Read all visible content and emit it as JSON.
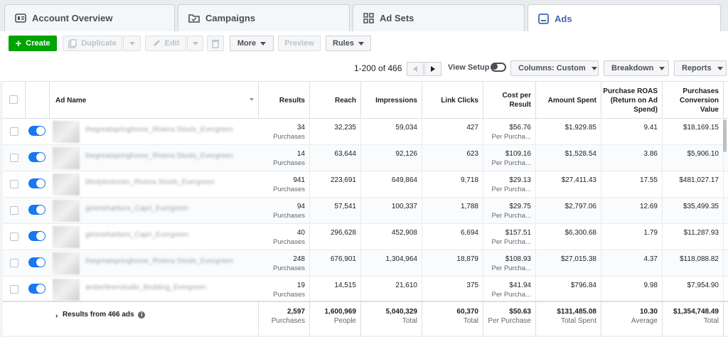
{
  "tabs": [
    {
      "label": "Account Overview",
      "icon": "account-overview-icon"
    },
    {
      "label": "Campaigns",
      "icon": "campaigns-folder-icon"
    },
    {
      "label": "Ad Sets",
      "icon": "ad-sets-grid-icon"
    },
    {
      "label": "Ads",
      "icon": "ads-icon",
      "active": true
    }
  ],
  "toolbar": {
    "create": "Create",
    "duplicate": "Duplicate",
    "edit": "Edit",
    "more": "More",
    "preview": "Preview",
    "rules": "Rules"
  },
  "pager": {
    "range": "1-200 of 466",
    "view_setup": "View Setup",
    "columns": "Columns: Custom",
    "breakdown": "Breakdown",
    "reports": "Reports"
  },
  "columns": {
    "ad_name": "Ad Name",
    "results": "Results",
    "reach": "Reach",
    "impressions": "Impressions",
    "link_clicks": "Link Clicks",
    "cost_per_result": "Cost per Result",
    "amount_spent": "Amount Spent",
    "roas": "Purchase ROAS (Return on Ad Spend)",
    "conv_value": "Purchases Conversion Value"
  },
  "rows": [
    {
      "name": "thegreatspringhome_Riviera Stools_Evergreen",
      "results": "34",
      "results_sub": "Purchases",
      "reach": "32,235",
      "impressions": "59,034",
      "clicks": "427",
      "cost": "$56.76",
      "cost_sub": "Per Purcha...",
      "spent": "$1,929.85",
      "roas": "9.41",
      "value": "$18,169.15"
    },
    {
      "name": "thegreatspringhome_Riviera Stools_Evergreen",
      "results": "14",
      "results_sub": "Purchases",
      "reach": "63,644",
      "impressions": "92,126",
      "clicks": "623",
      "cost": "$109.16",
      "cost_sub": "Per Purcha...",
      "spent": "$1,528.54",
      "roas": "3.86",
      "value": "$5,906.10"
    },
    {
      "name": "lifestylestories_Riviera Stools_Evergreen",
      "results": "941",
      "results_sub": "Purchases",
      "reach": "223,691",
      "impressions": "649,864",
      "clicks": "9,718",
      "cost": "$29.13",
      "cost_sub": "Per Purcha...",
      "spent": "$27,411.43",
      "roas": "17.55",
      "value": "$481,027.17"
    },
    {
      "name": "gimmeharbors_Capri_Evergreen",
      "results": "94",
      "results_sub": "Purchases",
      "reach": "57,541",
      "impressions": "100,337",
      "clicks": "1,788",
      "cost": "$29.75",
      "cost_sub": "Per Purcha...",
      "spent": "$2,797.06",
      "roas": "12.69",
      "value": "$35,499.35"
    },
    {
      "name": "gimmeharbors_Capri_Evergreen",
      "results": "40",
      "results_sub": "Purchases",
      "reach": "296,628",
      "impressions": "452,908",
      "clicks": "6,694",
      "cost": "$157.51",
      "cost_sub": "Per Purcha...",
      "spent": "$6,300.68",
      "roas": "1.79",
      "value": "$11,287.93"
    },
    {
      "name": "thegreatspringhome_Riviera Stools_Evergreen",
      "results": "248",
      "results_sub": "Purchases",
      "reach": "676,901",
      "impressions": "1,304,964",
      "clicks": "18,879",
      "cost": "$108.93",
      "cost_sub": "Per Purcha...",
      "spent": "$27,015.38",
      "roas": "4.37",
      "value": "$118,088.82"
    },
    {
      "name": "amberlinenstudio_Bedding_Evergreen",
      "results": "19",
      "results_sub": "Purchases",
      "reach": "14,515",
      "impressions": "21,610",
      "clicks": "375",
      "cost": "$41.94",
      "cost_sub": "Per Purcha...",
      "spent": "$796.84",
      "roas": "9.98",
      "value": "$7,954.90"
    }
  ],
  "totals": {
    "label": "Results from 466 ads",
    "results": "2,597",
    "results_sub": "Purchases",
    "reach": "1,600,969",
    "reach_sub": "People",
    "impressions": "5,040,329",
    "impressions_sub": "Total",
    "clicks": "60,370",
    "clicks_sub": "Total",
    "cost": "$50.63",
    "cost_sub": "Per Purchase",
    "spent": "$131,485.08",
    "spent_sub": "Total Spent",
    "roas": "10.30",
    "roas_sub": "Average",
    "value": "$1,354,748.49",
    "value_sub": "Total"
  },
  "colors": {
    "accent": "#4267b2",
    "toggle_on": "#1877f2",
    "create_green": "#00a400"
  }
}
